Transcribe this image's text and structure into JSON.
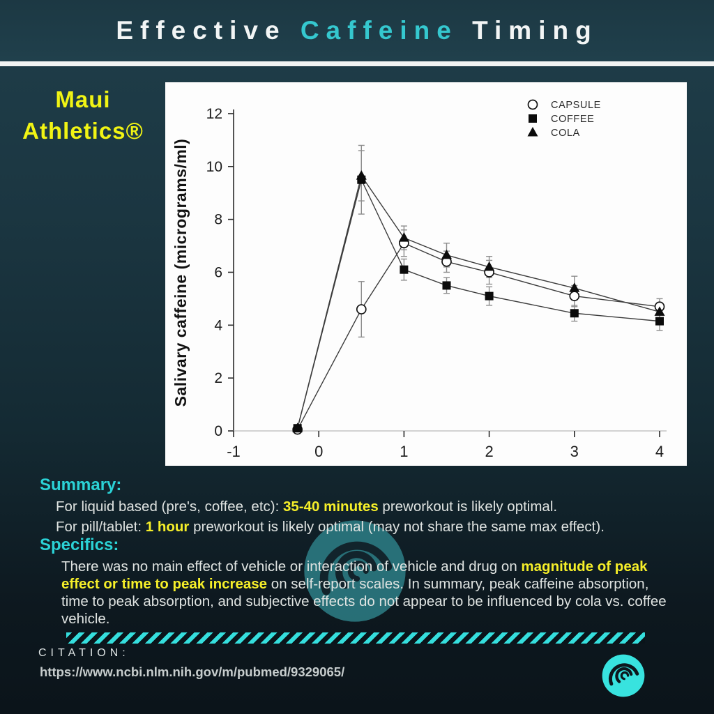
{
  "header": {
    "title_effective": "Effective ",
    "title_caffeine": "Caffeine",
    "title_timing": " Timing"
  },
  "brand": {
    "line1": "Maui",
    "line2": "Athletics®"
  },
  "colors": {
    "accent_cyan": "#35c8cf",
    "heading_cyan": "#2bd2d6",
    "highlight_yellow": "#f6ef29",
    "brand_yellow": "#f1f414",
    "ribbon_cyan": "#35dedd",
    "logo_cyan": "#38e3df",
    "body_text": "#dfe3e1",
    "chart_background": "#ffffff"
  },
  "icons": {
    "watermark": "maui-swirl-wave-icon",
    "bottom_logo": "maui-swirl-wave-icon"
  },
  "chart_data": {
    "type": "line",
    "x": [
      -0.25,
      0.5,
      1,
      1.5,
      2,
      3,
      4
    ],
    "series": [
      {
        "name": "CAPSULE",
        "marker": "circle-open",
        "values": [
          0.05,
          4.6,
          7.1,
          6.4,
          6.0,
          5.1,
          4.7
        ],
        "errors": [
          0.15,
          1.05,
          0.5,
          0.4,
          0.45,
          0.4,
          0.3
        ]
      },
      {
        "name": "COFFEE",
        "marker": "square-filled",
        "values": [
          0.1,
          9.5,
          6.1,
          5.5,
          5.1,
          4.45,
          4.15
        ],
        "errors": [
          0.15,
          1.3,
          0.4,
          0.3,
          0.35,
          0.3,
          0.35
        ]
      },
      {
        "name": "COLA",
        "marker": "triangle-filled",
        "values": [
          0.1,
          9.65,
          7.3,
          6.65,
          6.2,
          5.4,
          4.5
        ],
        "errors": [
          0.15,
          0.95,
          0.45,
          0.45,
          0.4,
          0.45,
          0.35
        ]
      }
    ],
    "title": "",
    "xlabel": "",
    "ylabel": "Salivary caffeine (micrograms/ml)",
    "xlim": [
      -1,
      4
    ],
    "ylim": [
      0,
      12
    ],
    "xticks": [
      -1,
      0,
      1,
      2,
      3,
      4
    ],
    "yticks": [
      0,
      2,
      4,
      6,
      8,
      10,
      12
    ],
    "legend_position": "top-right",
    "grid": false
  },
  "summary": {
    "heading": "Summary:",
    "line1": {
      "pre": "For liquid based (pre's, coffee, etc): ",
      "highlight": "35-40 minutes",
      "post": " preworkout is likely optimal."
    },
    "line2": {
      "pre": "For pill/tablet: ",
      "highlight": "1 hour",
      "post": " preworkout is likely optimal (may not share the same max effect)."
    }
  },
  "specifics": {
    "heading": "Specifics:",
    "para": {
      "pre": "There was no main effect of vehicle or interaction of vehicle and drug on ",
      "highlight": "magnitude of peak effect or time to peak increase",
      "post": " on self-report scales. In summary, peak caffeine absorption, time to peak absorption, and subjective effects do not appear to be influenced by cola vs. coffee vehicle."
    }
  },
  "citation": {
    "label": "CITATION:",
    "url": "https://www.ncbi.nlm.nih.gov/m/pubmed/9329065/"
  }
}
